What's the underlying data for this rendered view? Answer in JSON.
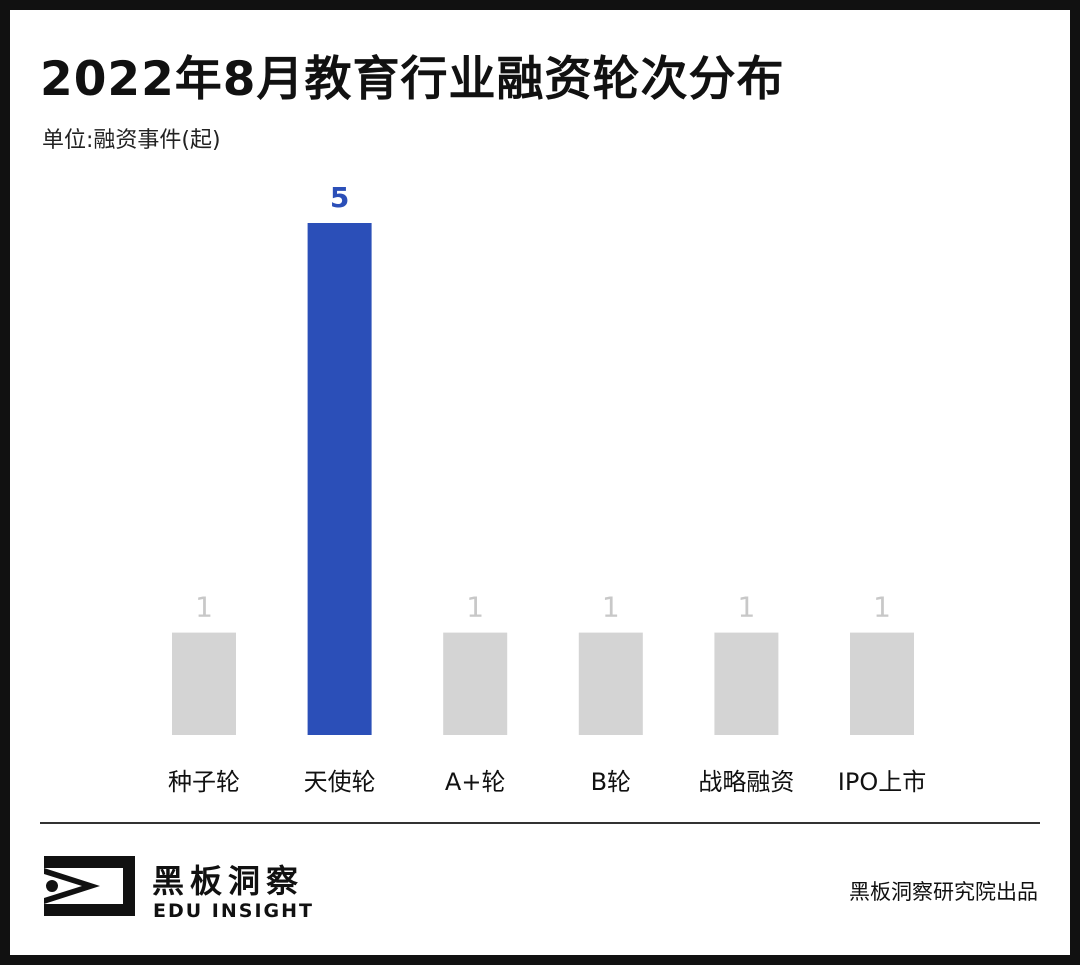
{
  "title": "2022年8月教育行业融资轮次分布",
  "unit_label": "单位:融资事件(起)",
  "chart_data": {
    "type": "bar",
    "categories": [
      "种子轮",
      "天使轮",
      "A+轮",
      "B轮",
      "战略融资",
      "IPO上市"
    ],
    "values": [
      1,
      5,
      1,
      1,
      1,
      1
    ],
    "data_labels": [
      "1",
      "5",
      "1",
      "1",
      "1",
      "1"
    ],
    "highlight_index": 1,
    "colors": {
      "highlight": "#2b4fb8",
      "normal": "#d4d4d4",
      "label_highlight": "#2b4fb8",
      "label_normal": "#c8c8c8"
    },
    "ylim": [
      0,
      5
    ],
    "grid": false,
    "legend": "none"
  },
  "footer": {
    "brand_name": "黑板洞察",
    "brand_sub": "EDU INSIGHT",
    "credit": "黑板洞察研究院出品",
    "logo_icon": "eye-bracket-logo"
  }
}
